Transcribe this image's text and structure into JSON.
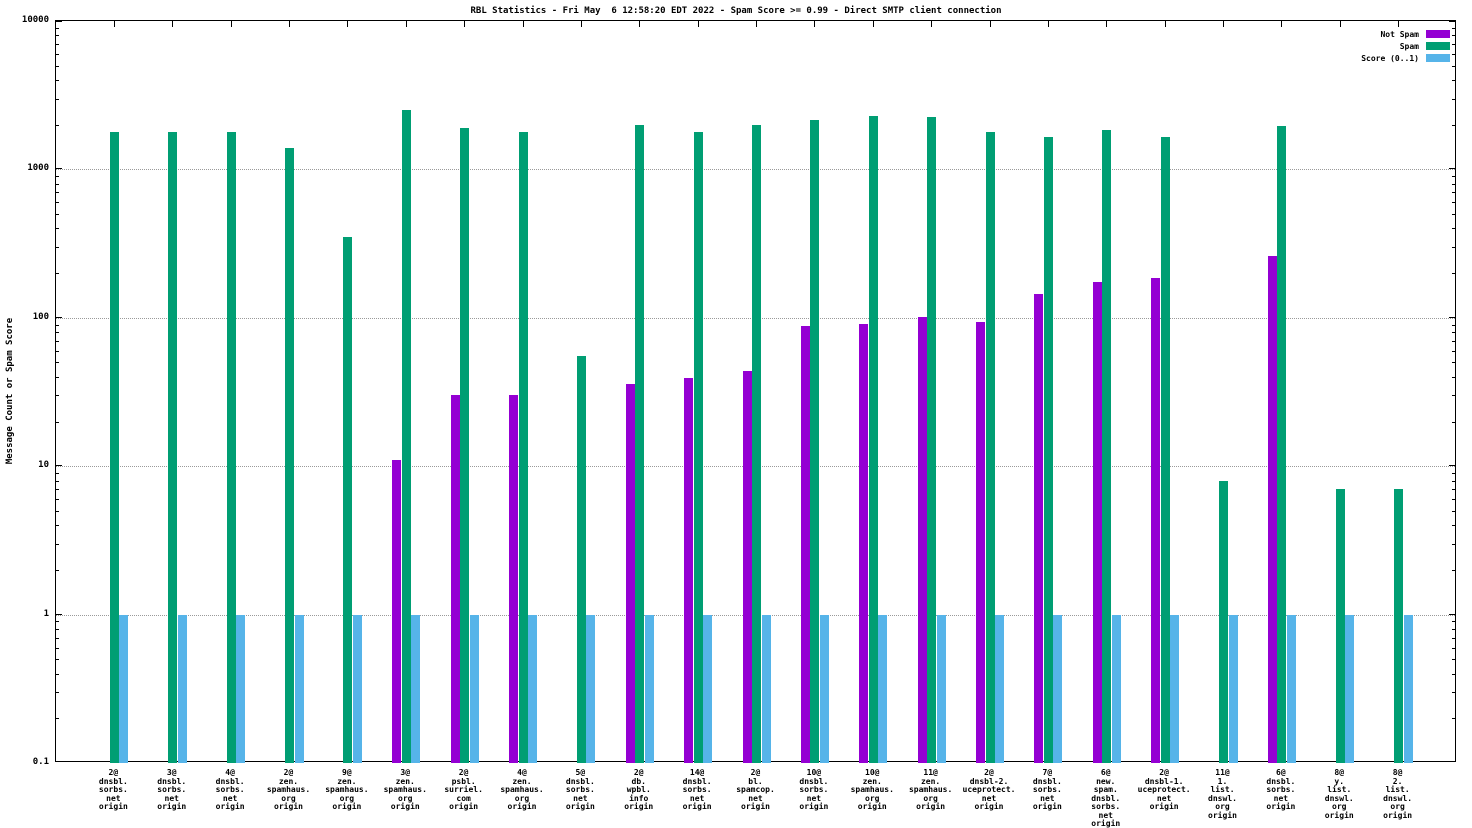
{
  "chart_data": {
    "type": "bar",
    "title": "RBL Statistics - Fri May  6 12:58:20 EDT 2022 - Spam Score >= 0.99 - Direct SMTP client connection",
    "ylabel": "Message Count or Spam Score",
    "xlabel": "",
    "y_scale": "log",
    "ylim": [
      0.1,
      10000
    ],
    "y_ticks": [
      0.1,
      1,
      10,
      100,
      1000,
      10000
    ],
    "grid": true,
    "legend_position": "top-right",
    "categories": [
      [
        "2@",
        "dnsbl.",
        "sorbs.",
        "net",
        "origin"
      ],
      [
        "3@",
        "dnsbl.",
        "sorbs.",
        "net",
        "origin"
      ],
      [
        "4@",
        "dnsbl.",
        "sorbs.",
        "net",
        "origin"
      ],
      [
        "2@",
        "zen.",
        "spamhaus.",
        "org",
        "origin"
      ],
      [
        "9@",
        "zen.",
        "spamhaus.",
        "org",
        "origin"
      ],
      [
        "3@",
        "zen.",
        "spamhaus.",
        "org",
        "origin"
      ],
      [
        "2@",
        "psbl.",
        "surriel.",
        "com",
        "origin"
      ],
      [
        "4@",
        "zen.",
        "spamhaus.",
        "org",
        "origin"
      ],
      [
        "5@",
        "dnsbl.",
        "sorbs.",
        "net",
        "origin"
      ],
      [
        "2@",
        "db.",
        "wpbl.",
        "info",
        "origin"
      ],
      [
        "14@",
        "dnsbl.",
        "sorbs.",
        "net",
        "origin"
      ],
      [
        "2@",
        "bl.",
        "spamcop.",
        "net",
        "origin"
      ],
      [
        "10@",
        "dnsbl.",
        "sorbs.",
        "net",
        "origin"
      ],
      [
        "10@",
        "zen.",
        "spamhaus.",
        "org",
        "origin"
      ],
      [
        "11@",
        "zen.",
        "spamhaus.",
        "org",
        "origin"
      ],
      [
        "2@",
        "dnsbl-2.",
        "uceprotect.",
        "net",
        "origin"
      ],
      [
        "7@",
        "dnsbl.",
        "sorbs.",
        "net",
        "origin"
      ],
      [
        "6@",
        "new.",
        "spam.",
        "dnsbl.",
        "sorbs.",
        "net",
        "origin"
      ],
      [
        "2@",
        "dnsbl-1.",
        "uceprotect.",
        "net",
        "origin"
      ],
      [
        "11@",
        "1.",
        "list.",
        "dnswl.",
        "org",
        "origin"
      ],
      [
        "6@",
        "dnsbl.",
        "sorbs.",
        "net",
        "origin"
      ],
      [
        "8@",
        "y.",
        "list.",
        "dnswl.",
        "org",
        "origin"
      ],
      [
        "8@",
        "2.",
        "list.",
        "dnswl.",
        "org",
        "origin"
      ]
    ],
    "series": [
      {
        "name": "Not Spam",
        "color": "#9400d3",
        "values": [
          null,
          null,
          null,
          null,
          null,
          11,
          30,
          30,
          null,
          36,
          39,
          44,
          88,
          91,
          101,
          93,
          145,
          175,
          185,
          null,
          260,
          null,
          null
        ]
      },
      {
        "name": "Spam",
        "color": "#009e73",
        "values": [
          1800,
          1800,
          1800,
          1400,
          350,
          2500,
          1900,
          1800,
          55,
          2000,
          1800,
          2000,
          2150,
          2300,
          2250,
          1800,
          1650,
          1850,
          1650,
          8,
          1950,
          7,
          7
        ]
      },
      {
        "name": "Score (0..1)",
        "color": "#56b4e9",
        "values": [
          1,
          1,
          1,
          1,
          1,
          1,
          1,
          1,
          1,
          1,
          1,
          1,
          1,
          1,
          1,
          1,
          1,
          1,
          1,
          1,
          1,
          1,
          1
        ]
      }
    ]
  }
}
